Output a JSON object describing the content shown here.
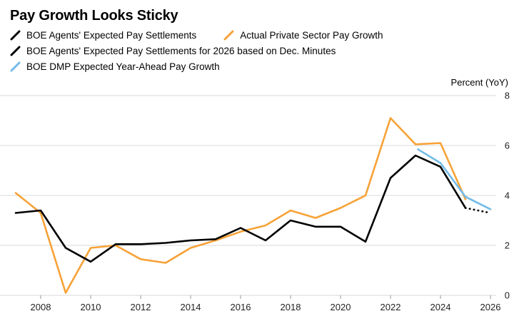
{
  "title": "Pay Growth Looks Sticky",
  "legend": [
    {
      "label": "BOE Agents' Expected Pay Settlements",
      "color": "#000000",
      "style": "solid"
    },
    {
      "label": "Actual Private Sector Pay Growth",
      "color": "#f7a237",
      "style": "solid"
    },
    {
      "label": "BOE Agents' Expected Pay Settlements for 2026 based on Dec. Minutes",
      "color": "#000000",
      "style": "dotted"
    },
    {
      "label": "BOE DMP Expected Year-Ahead Pay Growth",
      "color": "#72bbe8",
      "style": "solid"
    }
  ],
  "chart_data": {
    "type": "line",
    "title": "Pay Growth Looks Sticky",
    "xlabel": "",
    "ylabel": "Percent (YoY)",
    "ylim": [
      0,
      8
    ],
    "yticks": [
      0,
      2,
      4,
      6,
      8
    ],
    "xlim": [
      2006.8,
      2026.4
    ],
    "xticks": [
      2008,
      2010,
      2012,
      2014,
      2016,
      2018,
      2020,
      2022,
      2024,
      2026
    ],
    "grid": "horizontal",
    "legend_position": "top-left",
    "series": [
      {
        "name": "Actual Private Sector Pay Growth",
        "color": "#f7a237",
        "dash": "solid",
        "x": [
          2007,
          2008,
          2009,
          2010,
          2011,
          2012,
          2013,
          2014,
          2015,
          2016,
          2017,
          2018,
          2019,
          2020,
          2021,
          2022,
          2023,
          2024,
          2025
        ],
        "y": [
          4.1,
          3.3,
          0.1,
          1.9,
          2.0,
          1.45,
          1.3,
          1.9,
          2.2,
          2.55,
          2.8,
          3.4,
          3.1,
          3.5,
          4.0,
          7.1,
          6.05,
          6.1,
          3.85
        ]
      },
      {
        "name": "BOE Agents' Expected Pay Settlements",
        "color": "#000000",
        "dash": "solid",
        "x": [
          2007,
          2008,
          2009,
          2010,
          2011,
          2012,
          2013,
          2014,
          2015,
          2016,
          2017,
          2018,
          2019,
          2020,
          2021,
          2022,
          2023,
          2024,
          2025
        ],
        "y": [
          3.3,
          3.4,
          1.9,
          1.35,
          2.05,
          2.05,
          2.1,
          2.2,
          2.25,
          2.7,
          2.2,
          3.0,
          2.75,
          2.75,
          2.15,
          4.7,
          5.6,
          5.15,
          3.5
        ]
      },
      {
        "name": "BOE DMP Expected Year-Ahead Pay Growth",
        "color": "#72bbe8",
        "dash": "solid",
        "x": [
          2023.1,
          2024,
          2025,
          2026
        ],
        "y": [
          5.85,
          5.3,
          3.95,
          3.45
        ]
      },
      {
        "name": "BOE Agents' Expected Pay Settlements for 2026 based on Dec. Minutes",
        "color": "#000000",
        "dash": "dotted",
        "x": [
          2025,
          2026
        ],
        "y": [
          3.5,
          3.3
        ]
      }
    ]
  }
}
